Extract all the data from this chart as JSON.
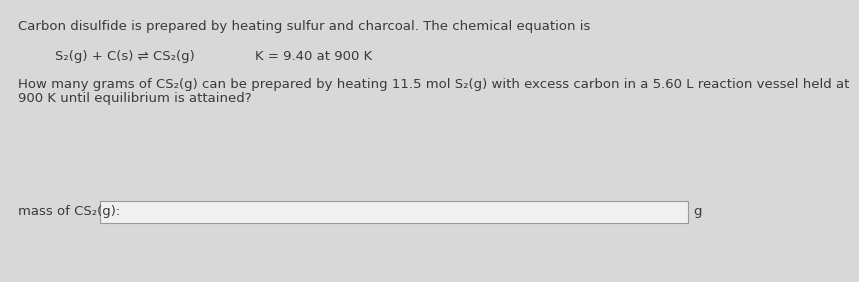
{
  "bg_color": "#d8d8d8",
  "text_color": "#3a3a3a",
  "line1": "Carbon disulfide is prepared by heating sulfur and charcoal. The chemical equation is",
  "equation_left": "S₂(g) + C(s) ⇌ CS₂(g)",
  "equation_right": "K⁣ = 9.40 at 900 K",
  "question": "How many grams of CS₂(g) can be prepared by heating 11.5 mol S₂(g) with excess carbon in a 5.60 L reaction vessel held at",
  "question2": "900 K until equilibrium is attained?",
  "label": "mass of CS₂(g):",
  "unit": "g",
  "box_color": "#f0f0f0",
  "box_border": "#999999",
  "font_size": 9.5
}
